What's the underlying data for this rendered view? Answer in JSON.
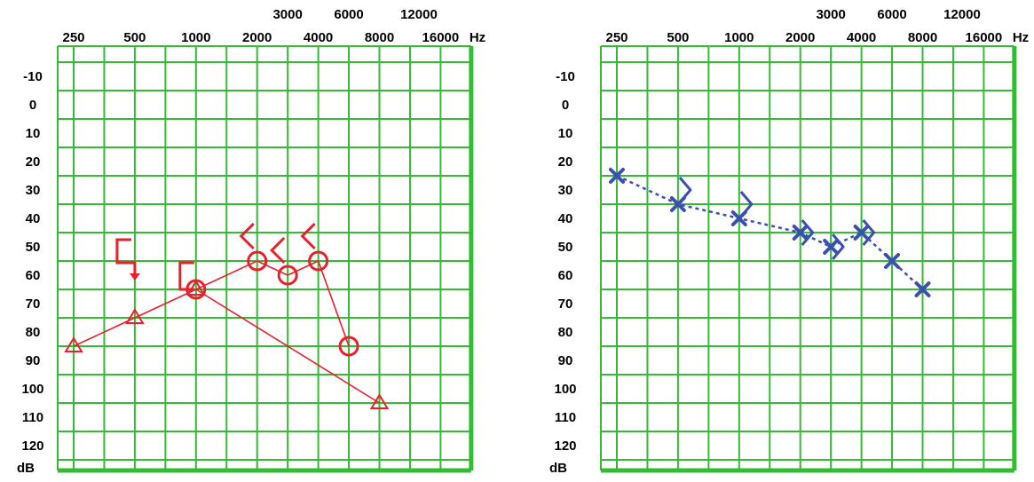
{
  "chart_data": [
    {
      "type": "line",
      "title": "",
      "x_tick_labels_row1": [
        "250",
        "500",
        "1000",
        "2000",
        "4000",
        "8000",
        "16000"
      ],
      "x_tick_labels_row2": [
        "3000",
        "6000",
        "12000"
      ],
      "x_unit": "Hz",
      "y_tick_labels": [
        "-10",
        "0",
        "10",
        "20",
        "30",
        "40",
        "50",
        "60",
        "70",
        "80",
        "90",
        "100",
        "110",
        "120"
      ],
      "y_unit": "dB",
      "ylim": [
        -20,
        130
      ],
      "y_inverted": true,
      "grid": true,
      "color": "#e8202a",
      "series": [
        {
          "marker": "circle",
          "connected": true,
          "x": [
            2000,
            3000,
            4000,
            6000
          ],
          "y": [
            55,
            60,
            55,
            85
          ],
          "extra": [
            {
              "x": 1000,
              "y": 65
            }
          ]
        },
        {
          "marker": "triangle",
          "connected": true,
          "x": [
            250,
            500,
            1000
          ],
          "y": [
            85,
            75,
            65
          ],
          "extra": [
            {
              "x": 8000,
              "y": 105
            }
          ]
        },
        {
          "marker": "angle-bracket-left",
          "connected": false,
          "x": [
            2000,
            3000,
            4000
          ],
          "y": [
            45,
            50,
            45
          ]
        },
        {
          "marker": "bracket-arrow-down",
          "connected": false,
          "x": [
            500
          ],
          "y": [
            50
          ]
        },
        {
          "marker": "bracket-left",
          "connected": false,
          "x": [
            1000
          ],
          "y": [
            60
          ]
        }
      ]
    },
    {
      "type": "line",
      "title": "",
      "x_tick_labels_row1": [
        "250",
        "500",
        "1000",
        "2000",
        "4000",
        "8000",
        "16000"
      ],
      "x_tick_labels_row2": [
        "3000",
        "6000",
        "12000"
      ],
      "x_unit": "Hz",
      "y_tick_labels": [
        "-10",
        "0",
        "10",
        "20",
        "30",
        "40",
        "50",
        "60",
        "70",
        "80",
        "90",
        "100",
        "110",
        "120"
      ],
      "y_unit": "dB",
      "ylim": [
        -20,
        130
      ],
      "y_inverted": true,
      "grid": true,
      "color": "#3a4fb0",
      "series": [
        {
          "marker": "x",
          "connected": true,
          "style": "dashed",
          "x": [
            250,
            500,
            1000,
            2000,
            3000,
            4000,
            6000,
            8000
          ],
          "y": [
            25,
            35,
            40,
            45,
            50,
            45,
            55,
            65
          ]
        },
        {
          "marker": "angle-bracket-right",
          "connected": false,
          "x": [
            500,
            1000,
            2000,
            3000,
            4000
          ],
          "y": [
            30,
            35,
            45,
            50,
            45
          ]
        }
      ]
    }
  ]
}
